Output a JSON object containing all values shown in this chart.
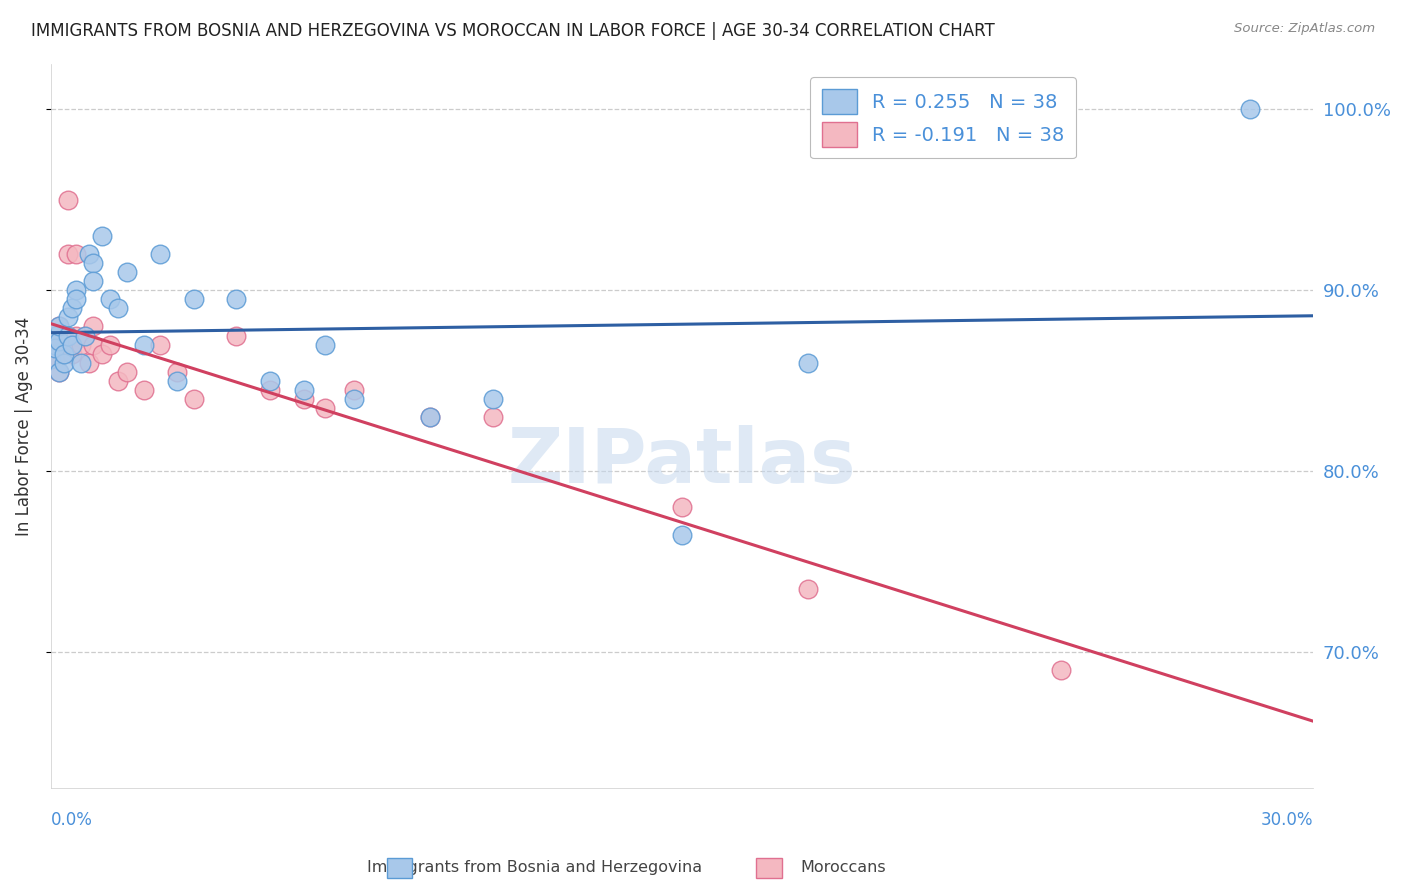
{
  "title": "IMMIGRANTS FROM BOSNIA AND HERZEGOVINA VS MOROCCAN IN LABOR FORCE | AGE 30-34 CORRELATION CHART",
  "source": "Source: ZipAtlas.com",
  "ylabel": "In Labor Force | Age 30-34",
  "xlim": [
    0.0,
    0.3
  ],
  "ylim": [
    0.625,
    1.025
  ],
  "yticks": [
    0.7,
    0.8,
    0.9,
    1.0
  ],
  "ytick_labels": [
    "70.0%",
    "80.0%",
    "90.0%",
    "100.0%"
  ],
  "bosnia_x": [
    0.0,
    0.001,
    0.001,
    0.001,
    0.002,
    0.002,
    0.002,
    0.003,
    0.003,
    0.004,
    0.004,
    0.005,
    0.005,
    0.006,
    0.006,
    0.007,
    0.008,
    0.009,
    0.01,
    0.01,
    0.012,
    0.014,
    0.016,
    0.018,
    0.022,
    0.026,
    0.03,
    0.034,
    0.044,
    0.052,
    0.06,
    0.065,
    0.072,
    0.09,
    0.105,
    0.15,
    0.18,
    0.285
  ],
  "bosnia_y": [
    0.862,
    0.87,
    0.875,
    0.868,
    0.855,
    0.872,
    0.88,
    0.86,
    0.865,
    0.875,
    0.885,
    0.89,
    0.87,
    0.9,
    0.895,
    0.86,
    0.875,
    0.92,
    0.915,
    0.905,
    0.93,
    0.895,
    0.89,
    0.91,
    0.87,
    0.92,
    0.85,
    0.895,
    0.895,
    0.85,
    0.845,
    0.87,
    0.84,
    0.83,
    0.84,
    0.765,
    0.86,
    1.0
  ],
  "moroccan_x": [
    0.0,
    0.001,
    0.001,
    0.001,
    0.002,
    0.002,
    0.002,
    0.003,
    0.003,
    0.004,
    0.004,
    0.005,
    0.005,
    0.006,
    0.006,
    0.007,
    0.008,
    0.009,
    0.01,
    0.01,
    0.012,
    0.014,
    0.016,
    0.018,
    0.022,
    0.026,
    0.03,
    0.034,
    0.044,
    0.052,
    0.06,
    0.065,
    0.072,
    0.09,
    0.105,
    0.15,
    0.18,
    0.24
  ],
  "moroccan_y": [
    0.865,
    0.87,
    0.862,
    0.875,
    0.88,
    0.87,
    0.855,
    0.87,
    0.875,
    0.92,
    0.95,
    0.87,
    0.865,
    0.92,
    0.875,
    0.87,
    0.875,
    0.86,
    0.87,
    0.88,
    0.865,
    0.87,
    0.85,
    0.855,
    0.845,
    0.87,
    0.855,
    0.84,
    0.875,
    0.845,
    0.84,
    0.835,
    0.845,
    0.83,
    0.83,
    0.78,
    0.735,
    0.69
  ],
  "bosnia_color": "#a8c8ea",
  "bosnia_edge": "#5b9bd5",
  "moroccan_color": "#f4b8c1",
  "moroccan_edge": "#e07090",
  "blue_line_color": "#2e5fa3",
  "pink_line_color": "#d04060",
  "title_color": "#222222",
  "source_color": "#888888",
  "grid_color": "#cccccc",
  "right_tick_color": "#4a90d9",
  "watermark_color": "#c5d8ee",
  "background_color": "#ffffff",
  "marker_size": 180
}
